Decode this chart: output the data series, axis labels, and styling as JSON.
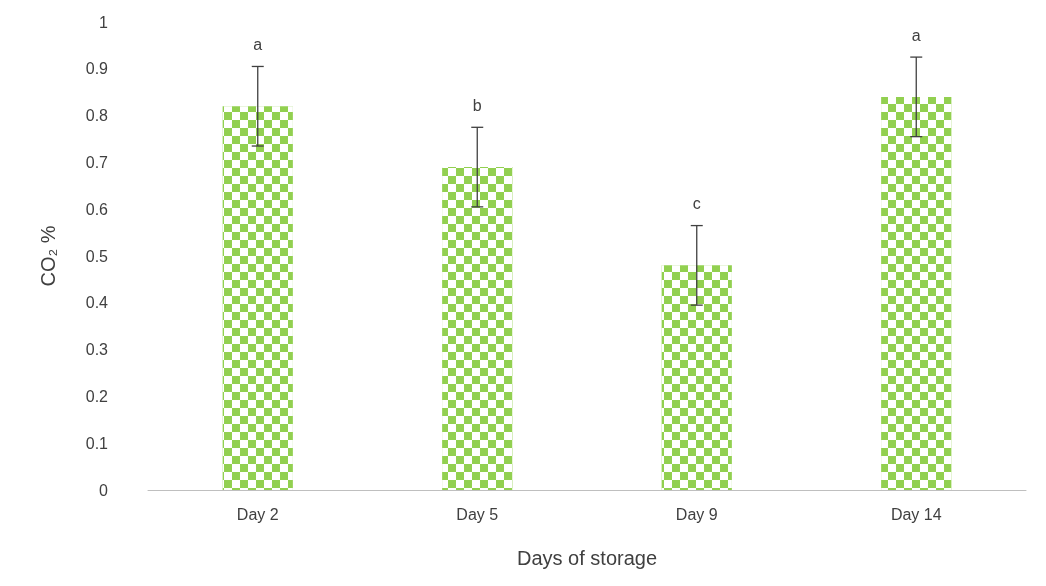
{
  "chart_data": {
    "type": "bar",
    "xlabel": "Days of storage",
    "ylabel": "CO₂ %",
    "categories": [
      "Day 2",
      "Day 5",
      "Day 9",
      "Day 14"
    ],
    "values": [
      0.82,
      0.69,
      0.48,
      0.84
    ],
    "errors": [
      0.085,
      0.085,
      0.085,
      0.085
    ],
    "color": "#92d050",
    "ylim": [
      0,
      1
    ],
    "yticks": [
      0,
      0.1,
      0.2,
      0.3,
      0.4,
      0.5,
      0.6,
      0.7,
      0.8,
      0.9,
      1
    ],
    "grid": false,
    "annotations": [
      {
        "text": "a",
        "x": "Day 2",
        "y": 0.905
      },
      {
        "text": "b",
        "x": "Day 5",
        "y": 0.775
      },
      {
        "text": "c",
        "x": "Day 9",
        "y": 0.565
      },
      {
        "text": "a",
        "x": "Day 14",
        "y": 0.925
      }
    ]
  }
}
